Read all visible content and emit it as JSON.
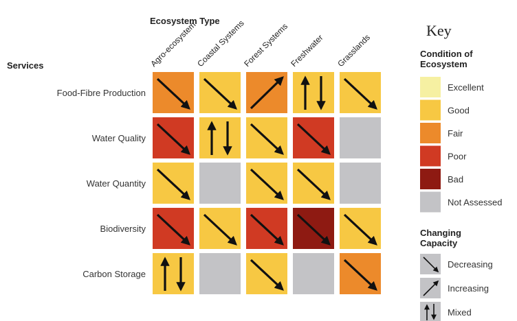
{
  "header": {
    "ecosystem_type": "Ecosystem Type",
    "services": "Services"
  },
  "columns": [
    "Agro-ecosystem",
    "Coastal Systems",
    "Forest Systems",
    "Freshwater",
    "Grasslands"
  ],
  "rows": [
    {
      "label": "Food-Fibre Production",
      "cells": [
        {
          "condition": "Fair",
          "trend": "Decreasing"
        },
        {
          "condition": "Good",
          "trend": "Decreasing"
        },
        {
          "condition": "Fair",
          "trend": "Increasing"
        },
        {
          "condition": "Good",
          "trend": "Mixed"
        },
        {
          "condition": "Good",
          "trend": "Decreasing"
        }
      ]
    },
    {
      "label": "Water Quality",
      "cells": [
        {
          "condition": "Poor",
          "trend": "Decreasing"
        },
        {
          "condition": "Good",
          "trend": "Mixed"
        },
        {
          "condition": "Good",
          "trend": "Decreasing"
        },
        {
          "condition": "Poor",
          "trend": "Decreasing"
        },
        {
          "condition": "Not Assessed",
          "trend": ""
        }
      ]
    },
    {
      "label": "Water Quantity",
      "cells": [
        {
          "condition": "Good",
          "trend": "Decreasing"
        },
        {
          "condition": "Not Assessed",
          "trend": ""
        },
        {
          "condition": "Good",
          "trend": "Decreasing"
        },
        {
          "condition": "Good",
          "trend": "Decreasing"
        },
        {
          "condition": "Not Assessed",
          "trend": ""
        }
      ]
    },
    {
      "label": "Biodiversity",
      "cells": [
        {
          "condition": "Poor",
          "trend": "Decreasing"
        },
        {
          "condition": "Good",
          "trend": "Decreasing"
        },
        {
          "condition": "Poor",
          "trend": "Decreasing"
        },
        {
          "condition": "Bad",
          "trend": "Decreasing"
        },
        {
          "condition": "Good",
          "trend": "Decreasing"
        }
      ]
    },
    {
      "label": "Carbon Storage",
      "cells": [
        {
          "condition": "Good",
          "trend": "Mixed"
        },
        {
          "condition": "Not Assessed",
          "trend": ""
        },
        {
          "condition": "Good",
          "trend": "Decreasing"
        },
        {
          "condition": "Not Assessed",
          "trend": ""
        },
        {
          "condition": "Fair",
          "trend": "Decreasing"
        }
      ]
    }
  ],
  "key": {
    "title": "Key",
    "condition_heading": [
      "Condition of",
      "Ecosystem"
    ],
    "conditions": [
      {
        "label": "Excellent",
        "color": "#f6f0a2"
      },
      {
        "label": "Good",
        "color": "#f7c843"
      },
      {
        "label": "Fair",
        "color": "#ec8a2b"
      },
      {
        "label": "Poor",
        "color": "#d03a23"
      },
      {
        "label": "Bad",
        "color": "#8e1a12"
      },
      {
        "label": "Not Assessed",
        "color": "#c3c3c6"
      }
    ],
    "capacity_heading": [
      "Changing",
      "Capacity"
    ],
    "trends": [
      {
        "label": "Decreasing",
        "icon": "decreasing-arrow-icon"
      },
      {
        "label": "Increasing",
        "icon": "increasing-arrow-icon"
      },
      {
        "label": "Mixed",
        "icon": "mixed-arrows-icon"
      }
    ]
  }
}
